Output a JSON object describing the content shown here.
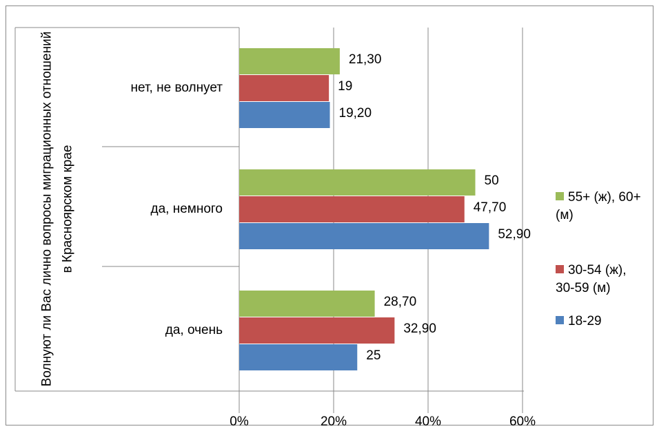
{
  "chart_data": {
    "type": "hbar",
    "y_label": "Волнуют ли Вас лично вопросы миграционных отношений в Красноярском крае",
    "categories": [
      "нет, не волнует",
      "да, немного",
      "да, очень"
    ],
    "series": [
      {
        "name": "55+ (ж), 60+ (м)",
        "color": "#9bbb59",
        "values": [
          21.3,
          50,
          28.7
        ],
        "value_labels": [
          "21,30",
          "50",
          "28,70"
        ]
      },
      {
        "name": "30-54 (ж), 30-59 (м)",
        "color": "#c0504d",
        "values": [
          19,
          47.7,
          32.9
        ],
        "value_labels": [
          "19",
          "47,70",
          "32,90"
        ]
      },
      {
        "name": "18-29",
        "color": "#4f81bd",
        "values": [
          19.2,
          52.9,
          25
        ],
        "value_labels": [
          "19,20",
          "52,90",
          "25"
        ]
      }
    ],
    "xlim": [
      0,
      60
    ],
    "xticks": [
      {
        "value": 0,
        "label": "0%"
      },
      {
        "value": 20,
        "label": "20%"
      },
      {
        "value": 40,
        "label": "40%"
      },
      {
        "value": 60,
        "label": "60%"
      }
    ],
    "grid": true,
    "legend": "right"
  }
}
